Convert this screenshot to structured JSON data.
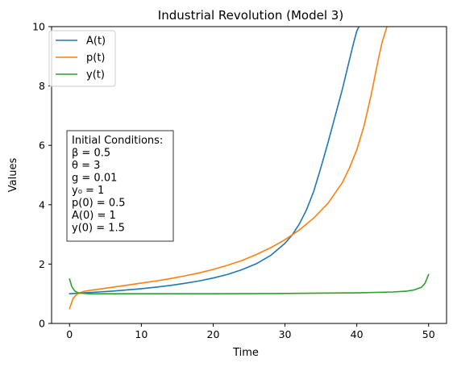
{
  "chart_data": {
    "type": "line",
    "title": "Industrial Revolution (Model 3)",
    "xlabel": "Time",
    "ylabel": "Values",
    "xlim": [
      -2.5,
      52.5
    ],
    "ylim": [
      0,
      10
    ],
    "xticks": [
      0,
      10,
      20,
      30,
      40,
      50
    ],
    "yticks": [
      0,
      2,
      4,
      6,
      8,
      10
    ],
    "legend_position": "top-left",
    "grid": false,
    "series": [
      {
        "name": "A(t)",
        "color": "#1f77b4",
        "x": [
          0,
          2,
          4,
          6,
          8,
          10,
          12,
          14,
          16,
          18,
          20,
          22,
          24,
          26,
          28,
          30,
          31,
          32,
          33,
          34,
          35,
          36,
          37,
          38,
          39,
          39.5,
          40,
          40.3
        ],
        "values": [
          1.0,
          1.03,
          1.06,
          1.09,
          1.13,
          1.17,
          1.22,
          1.28,
          1.35,
          1.43,
          1.53,
          1.65,
          1.81,
          2.01,
          2.29,
          2.7,
          2.98,
          3.35,
          3.83,
          4.45,
          5.25,
          6.1,
          7.0,
          7.9,
          8.9,
          9.4,
          9.85,
          10.0
        ]
      },
      {
        "name": "p(t)",
        "color": "#ff7f0e",
        "x": [
          0,
          0.5,
          1,
          1.5,
          2,
          3,
          4,
          6,
          8,
          10,
          12,
          14,
          16,
          18,
          20,
          22,
          24,
          26,
          28,
          30,
          32,
          34,
          36,
          38,
          39,
          40,
          41,
          42,
          43,
          43.5,
          44.2
        ],
        "values": [
          0.5,
          0.85,
          0.98,
          1.04,
          1.08,
          1.12,
          1.15,
          1.22,
          1.29,
          1.36,
          1.43,
          1.51,
          1.6,
          1.7,
          1.82,
          1.96,
          2.12,
          2.32,
          2.55,
          2.82,
          3.15,
          3.55,
          4.05,
          4.75,
          5.25,
          5.85,
          6.65,
          7.7,
          8.9,
          9.45,
          10.0
        ]
      },
      {
        "name": "y(t)",
        "color": "#2ca02c",
        "x": [
          0,
          0.3,
          0.7,
          1.2,
          2,
          3,
          5,
          10,
          20,
          30,
          40,
          45,
          47,
          48,
          49,
          49.5,
          50
        ],
        "values": [
          1.5,
          1.25,
          1.1,
          1.03,
          1.01,
          1.0,
          1.0,
          1.0,
          1.0,
          1.01,
          1.03,
          1.06,
          1.09,
          1.13,
          1.22,
          1.35,
          1.65
        ]
      }
    ],
    "annotation": {
      "lines": [
        "Initial Conditions:",
        "β = 0.5",
        "θ = 3",
        "g = 0.01",
        "y₀ = 1",
        "p(0) = 0.5",
        "A(0) = 1",
        "y(0) = 1.5"
      ]
    }
  }
}
